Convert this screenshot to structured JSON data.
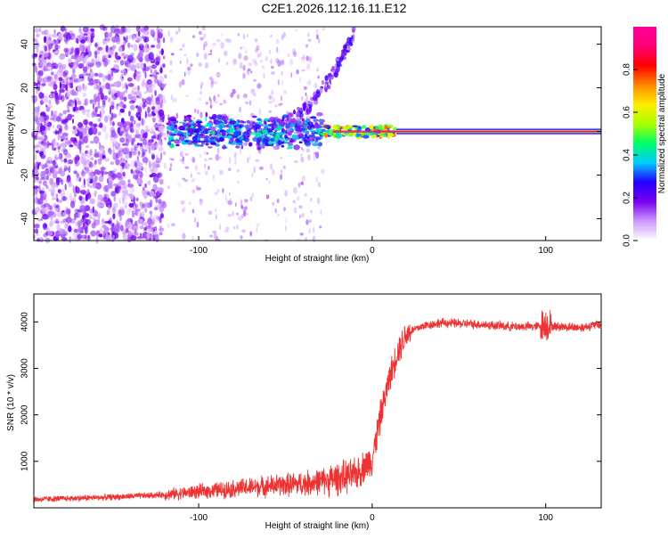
{
  "title": "C2E1.2026.112.16.11.E12",
  "chart_data": [
    {
      "type": "heatmap",
      "name": "spectrogram",
      "xlabel": "Height of straight line (km)",
      "ylabel": "Frequency (Hz)",
      "xlim": [
        -195,
        132
      ],
      "ylim": [
        -50,
        48
      ],
      "x_ticks": [
        -100,
        0,
        100
      ],
      "y_ticks": [
        -40,
        -20,
        0,
        20,
        40
      ],
      "colorbar": {
        "label": "Normalized spectral amplitude",
        "range": [
          0,
          1
        ],
        "ticks": [
          0.0,
          0.2,
          0.4,
          0.6,
          0.8
        ],
        "colormap": [
          "#ffffff",
          "#cc99ff",
          "#7700ee",
          "#2200ff",
          "#00ccff",
          "#00ff66",
          "#aaff00",
          "#ffee00",
          "#ff8800",
          "#ff0000",
          "#ff0077",
          "#ff0099"
        ]
      },
      "features": [
        {
          "name": "random noise (scattered spots)",
          "x_range": [
            -195,
            -120
          ],
          "y_range": [
            -50,
            48
          ]
        },
        {
          "name": "sparse noise",
          "x_range": [
            -120,
            -30
          ],
          "y_range": [
            -50,
            48
          ]
        },
        {
          "name": "upward arc",
          "x_range": [
            -60,
            -10
          ],
          "y_range": [
            0,
            48
          ]
        },
        {
          "name": "carrier band (noisy)",
          "x_range": [
            -118,
            -28
          ],
          "y": 0
        },
        {
          "name": "carrier band (clear)",
          "x_range": [
            -28,
            132
          ],
          "y": 0
        }
      ]
    },
    {
      "type": "line",
      "name": "snr",
      "xlabel": "Height of straight line (km)",
      "ylabel": "SNR (10 * v/v)",
      "xlim": [
        -195,
        132
      ],
      "ylim": [
        0,
        4600
      ],
      "x_ticks": [
        -100,
        0,
        100
      ],
      "y_ticks": [
        1000,
        2000,
        3000,
        4000
      ],
      "color": "#ee3333",
      "series": [
        {
          "name": "SNR",
          "x": [
            -195,
            -150,
            -120,
            -100,
            -80,
            -60,
            -40,
            -25,
            -10,
            0,
            5,
            10,
            15,
            20,
            25,
            30,
            40,
            60,
            80,
            95,
            100,
            105,
            120,
            132
          ],
          "y": [
            180,
            230,
            280,
            350,
            410,
            470,
            520,
            600,
            700,
            1050,
            2000,
            2800,
            3400,
            3750,
            3850,
            3920,
            3980,
            3950,
            3900,
            3900,
            3950,
            3900,
            3880,
            3950
          ]
        }
      ]
    }
  ]
}
